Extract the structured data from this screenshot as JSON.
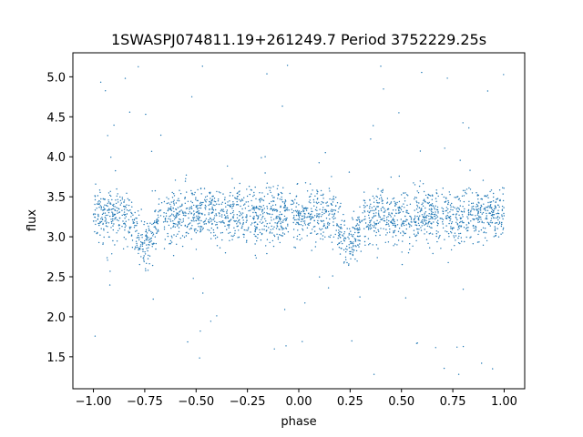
{
  "chart_data": {
    "type": "scatter",
    "title": "1SWASPJ074811.19+261249.7 Period 3752229.25s",
    "xlabel": "phase",
    "ylabel": "flux",
    "xlim": [
      -1.1,
      1.1
    ],
    "ylim": [
      1.1,
      5.3
    ],
    "xticks": [
      -1.0,
      -0.75,
      -0.5,
      -0.25,
      0.0,
      0.25,
      0.5,
      0.75,
      1.0
    ],
    "xtick_labels": [
      "−1.00",
      "−0.75",
      "−0.50",
      "−0.25",
      "0.00",
      "0.25",
      "0.50",
      "0.75",
      "1.00"
    ],
    "yticks": [
      1.5,
      2.0,
      2.5,
      3.0,
      3.5,
      4.0,
      4.5,
      5.0
    ],
    "ytick_labels": [
      "1.5",
      "2.0",
      "2.5",
      "3.0",
      "3.5",
      "4.0",
      "4.5",
      "5.0"
    ],
    "grid": false,
    "marker_color": "#1f77b4",
    "series": [
      {
        "name": "",
        "description_points": [
          {
            "x": -1.0,
            "y": 3.25
          },
          {
            "x": -0.95,
            "y": 3.3
          },
          {
            "x": -0.9,
            "y": 3.25
          },
          {
            "x": -0.85,
            "y": 3.25
          },
          {
            "x": -0.8,
            "y": 3.2
          },
          {
            "x": -0.78,
            "y": 3.0
          },
          {
            "x": -0.75,
            "y": 2.95
          },
          {
            "x": -0.72,
            "y": 3.05
          },
          {
            "x": -0.7,
            "y": 3.2
          },
          {
            "x": -0.65,
            "y": 3.2
          },
          {
            "x": -0.6,
            "y": 3.25
          },
          {
            "x": -0.55,
            "y": 3.25
          },
          {
            "x": -0.5,
            "y": 3.3
          },
          {
            "x": -0.45,
            "y": 3.25
          },
          {
            "x": -0.4,
            "y": 3.25
          },
          {
            "x": -0.3,
            "y": 3.3
          },
          {
            "x": -0.2,
            "y": 3.3
          },
          {
            "x": -0.1,
            "y": 3.3
          },
          {
            "x": 0.0,
            "y": 3.25
          },
          {
            "x": 0.1,
            "y": 3.25
          },
          {
            "x": 0.2,
            "y": 3.2
          },
          {
            "x": 0.22,
            "y": 3.0
          },
          {
            "x": 0.25,
            "y": 2.95
          },
          {
            "x": 0.28,
            "y": 3.05
          },
          {
            "x": 0.3,
            "y": 3.2
          },
          {
            "x": 0.35,
            "y": 3.2
          },
          {
            "x": 0.4,
            "y": 3.25
          },
          {
            "x": 0.45,
            "y": 3.25
          },
          {
            "x": 0.5,
            "y": 3.3
          },
          {
            "x": 0.55,
            "y": 3.25
          },
          {
            "x": 0.6,
            "y": 3.25
          },
          {
            "x": 0.7,
            "y": 3.3
          },
          {
            "x": 0.8,
            "y": 3.3
          },
          {
            "x": 0.9,
            "y": 3.3
          },
          {
            "x": 1.0,
            "y": 3.25
          }
        ]
      }
    ]
  }
}
